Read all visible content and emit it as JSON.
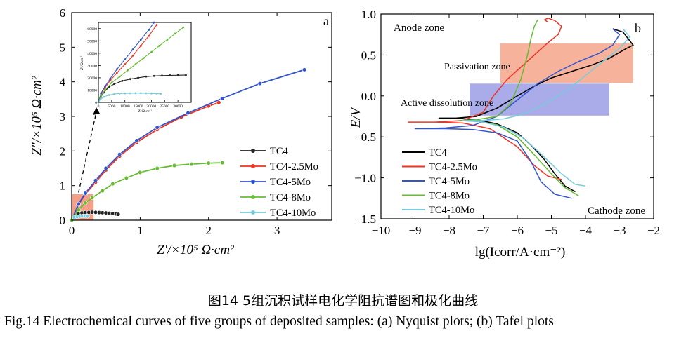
{
  "caption_cn": "图14  5组沉积试样电化学阻抗谱图和极化曲线",
  "caption_en": "Fig.14  Electrochemical curves of five groups of deposited samples: (a) Nyquist plots; (b) Tafel plots",
  "chart_data": [
    {
      "id": "a",
      "type": "scatter",
      "panel_label": "a",
      "title": "",
      "xlabel": "Z′/×10⁵ Ω·cm²",
      "ylabel": "Z″/×10⁵ Ω·cm²",
      "xlim": [
        0,
        3.8
      ],
      "ylim": [
        0,
        6
      ],
      "xticks": [
        "0",
        "1",
        "2",
        "3"
      ],
      "yticks": [
        "0",
        "1",
        "2",
        "3",
        "4",
        "5",
        "6"
      ],
      "legend": "center-right",
      "series": [
        {
          "name": "TC4",
          "color": "#222222",
          "x": [
            0.05,
            0.1,
            0.15,
            0.2,
            0.25,
            0.3,
            0.35,
            0.4,
            0.45,
            0.5,
            0.55,
            0.6,
            0.65,
            0.68
          ],
          "y": [
            0.12,
            0.18,
            0.21,
            0.22,
            0.225,
            0.23,
            0.225,
            0.22,
            0.215,
            0.21,
            0.2,
            0.19,
            0.18,
            0.17
          ]
        },
        {
          "name": "TC4-2.5Mo",
          "color": "#ee3322",
          "x": [
            0,
            0.1,
            0.2,
            0.35,
            0.5,
            0.7,
            0.95,
            1.25,
            1.6,
            2.0,
            2.15
          ],
          "y": [
            0,
            0.45,
            0.75,
            1.1,
            1.45,
            1.85,
            2.25,
            2.62,
            2.98,
            3.3,
            3.4
          ]
        },
        {
          "name": "TC4-5Mo",
          "color": "#3355cc",
          "x": [
            0,
            0.1,
            0.2,
            0.35,
            0.5,
            0.7,
            0.95,
            1.25,
            1.7,
            2.2,
            2.75,
            3.4
          ],
          "y": [
            0,
            0.47,
            0.78,
            1.15,
            1.5,
            1.9,
            2.3,
            2.68,
            3.1,
            3.52,
            3.95,
            4.35
          ]
        },
        {
          "name": "TC4-8Mo",
          "color": "#66bb33",
          "x": [
            0,
            0.1,
            0.2,
            0.3,
            0.45,
            0.6,
            0.8,
            1.0,
            1.25,
            1.5,
            1.75,
            2.0,
            2.2
          ],
          "y": [
            0,
            0.3,
            0.5,
            0.65,
            0.85,
            1.05,
            1.22,
            1.38,
            1.5,
            1.58,
            1.62,
            1.65,
            1.66
          ]
        },
        {
          "name": "TC4-10Mo",
          "color": "#77ccdd",
          "x": [
            0.04,
            0.08,
            0.12,
            0.16,
            0.2,
            0.23
          ],
          "y": [
            0.08,
            0.1,
            0.115,
            0.12,
            0.12,
            0.115
          ]
        }
      ],
      "inset": {
        "xlabel": "Z′/Ω·cm²",
        "ylabel": "Z″/Ω·cm²",
        "xlim": [
          0,
          35000
        ],
        "ylim": [
          0,
          65000
        ],
        "xticks": [
          "0",
          "5000",
          "10000",
          "15000",
          "20000",
          "25000",
          "30000"
        ],
        "yticks": [
          "0",
          "10000",
          "20000",
          "30000",
          "40000",
          "50000",
          "60000"
        ],
        "series": [
          {
            "name": "TC4",
            "color": "#222222",
            "x": [
              0,
              800,
              2000,
              4000,
              6000,
              9000,
              12000,
              15000,
              18000,
              21000,
              24000,
              27000,
              30000,
              33000
            ],
            "y": [
              0,
              4000,
              8000,
              12500,
              15000,
              17500,
              19000,
              20000,
              21000,
              21500,
              21800,
              22000,
              22100,
              22200
            ]
          },
          {
            "name": "TC4-2.5Mo",
            "color": "#ee3322",
            "x": [
              0,
              1000,
              2500,
              4500,
              7000,
              10000,
              13000,
              16000,
              19000,
              22000
            ],
            "y": [
              0,
              7000,
              12000,
              18000,
              24000,
              31000,
              38000,
              46000,
              54000,
              63000
            ]
          },
          {
            "name": "TC4-5Mo",
            "color": "#3355cc",
            "x": [
              0,
              1000,
              2500,
              4500,
              7000,
              10000,
              13000,
              16000,
              19000,
              21000
            ],
            "y": [
              0,
              7500,
              13000,
              19500,
              27000,
              35000,
              43000,
              51000,
              59000,
              65000
            ]
          },
          {
            "name": "TC4-8Mo",
            "color": "#66bb33",
            "x": [
              0,
              1000,
              2500,
              5000,
              8000,
              11000,
              14000,
              17000,
              20000,
              23000,
              26000,
              29000,
              32000
            ],
            "y": [
              0,
              5500,
              10000,
              16000,
              21000,
              26000,
              31000,
              36000,
              41000,
              46000,
              51000,
              56000,
              61000
            ]
          },
          {
            "name": "TC4-10Mo",
            "color": "#77ccdd",
            "x": [
              0,
              800,
              2000,
              4000,
              6000,
              8000,
              10000,
              12000,
              14000,
              16000,
              18000,
              20000,
              22000,
              23500
            ],
            "y": [
              0,
              2500,
              4500,
              6000,
              6800,
              7200,
              7300,
              7400,
              7500,
              7500,
              7400,
              7300,
              7100,
              7000
            ]
          }
        ]
      }
    },
    {
      "id": "b",
      "type": "line",
      "panel_label": "b",
      "title": "",
      "xlabel": "lg(Icorr/A·cm⁻²)",
      "ylabel": "E/V",
      "xlim": [
        -10,
        -2
      ],
      "ylim": [
        -1.5,
        1.0
      ],
      "xticks": [
        "−10",
        "−9",
        "−8",
        "−7",
        "−6",
        "−5",
        "−4",
        "−3",
        "−2"
      ],
      "yticks": [
        "−1.5",
        "−1.0",
        "−0.5",
        "0.0",
        "0.5",
        "1.0"
      ],
      "legend": "bottom-left",
      "annotations": [
        "Anode zone",
        "Passivation zone",
        "Active dissolution zone",
        "Cathode zone"
      ],
      "zones": [
        {
          "name": "Passivation zone",
          "color": "#f4a58a",
          "x": [
            -6.5,
            -2.6
          ],
          "y": [
            0.16,
            0.64
          ]
        },
        {
          "name": "Active dissolution zone",
          "color": "#9b9ee6",
          "x": [
            -7.4,
            -3.3
          ],
          "y": [
            -0.24,
            0.15
          ]
        }
      ],
      "series": [
        {
          "name": "TC4",
          "color": "#000000",
          "x": [
            -4.3,
            -4.6,
            -4.9,
            -5.2,
            -5.6,
            -6.0,
            -6.6,
            -7.2,
            -7.8,
            -8.3,
            -7.8,
            -7.2,
            -6.6,
            -6.0,
            -5.5,
            -5.0,
            -4.4,
            -3.8,
            -3.3,
            -2.8,
            -2.6,
            -2.9,
            -3.2
          ],
          "y": [
            -1.17,
            -1.1,
            -0.95,
            -0.78,
            -0.6,
            -0.45,
            -0.34,
            -0.29,
            -0.27,
            -0.27,
            -0.27,
            -0.25,
            -0.15,
            0.0,
            0.12,
            0.22,
            0.3,
            0.38,
            0.46,
            0.58,
            0.62,
            0.78,
            0.82
          ]
        },
        {
          "name": "TC4-2.5Mo",
          "color": "#ee3322",
          "x": [
            -4.7,
            -5.1,
            -5.5,
            -6.0,
            -6.8,
            -7.6,
            -8.4,
            -9.2,
            -8.4,
            -7.6,
            -7.0,
            -6.7,
            -6.3,
            -5.9,
            -5.5,
            -5.1,
            -4.8,
            -4.7,
            -4.9,
            -5.1,
            -5.2,
            -5.1
          ],
          "y": [
            -1.02,
            -0.98,
            -0.85,
            -0.62,
            -0.4,
            -0.33,
            -0.32,
            -0.32,
            -0.32,
            -0.3,
            -0.2,
            0.0,
            0.2,
            0.35,
            0.5,
            0.65,
            0.75,
            0.85,
            0.92,
            0.95,
            0.93,
            0.9
          ]
        },
        {
          "name": "TC4-5Mo",
          "color": "#3355cc",
          "x": [
            -4.4,
            -4.9,
            -5.3,
            -5.6,
            -6.0,
            -6.6,
            -7.3,
            -8.1,
            -9.0,
            -8.1,
            -7.3,
            -6.6,
            -6.0,
            -5.4,
            -4.8,
            -4.2,
            -3.6,
            -3.2,
            -3.0,
            -3.2
          ],
          "y": [
            -1.25,
            -1.2,
            -1.05,
            -0.8,
            -0.55,
            -0.45,
            -0.41,
            -0.4,
            -0.4,
            -0.39,
            -0.36,
            -0.25,
            -0.05,
            0.15,
            0.3,
            0.42,
            0.52,
            0.62,
            0.75,
            0.82
          ]
        },
        {
          "name": "TC4-8Mo",
          "color": "#66bb33",
          "x": [
            -4.2,
            -4.6,
            -5.0,
            -5.5,
            -6.0,
            -6.6,
            -7.2,
            -7.7,
            -7.2,
            -6.6,
            -6.2,
            -5.9,
            -5.7,
            -5.6,
            -5.5,
            -5.4
          ],
          "y": [
            -1.22,
            -1.12,
            -0.95,
            -0.72,
            -0.5,
            -0.35,
            -0.31,
            -0.3,
            -0.29,
            -0.25,
            -0.1,
            0.2,
            0.5,
            0.7,
            0.85,
            0.93
          ]
        },
        {
          "name": "TC4-10Mo",
          "color": "#77ccdd",
          "x": [
            -4.0,
            -4.3,
            -4.7,
            -5.2,
            -5.8,
            -6.4,
            -7.0,
            -7.6,
            -7.0,
            -6.4,
            -5.8,
            -5.2,
            -4.6,
            -4.2,
            -3.8,
            -3.4,
            -3.0,
            -2.7,
            -2.9
          ],
          "y": [
            -1.1,
            -1.08,
            -0.95,
            -0.75,
            -0.52,
            -0.38,
            -0.32,
            -0.3,
            -0.3,
            -0.28,
            -0.22,
            -0.1,
            0.05,
            0.18,
            0.32,
            0.45,
            0.58,
            0.72,
            0.82
          ]
        }
      ]
    }
  ]
}
